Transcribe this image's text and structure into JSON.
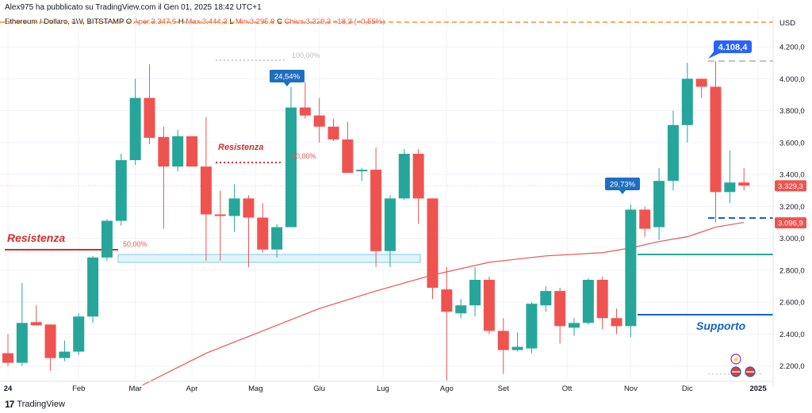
{
  "header": {
    "published": "Alex975 ha pubblicato su TradingView.com il Gen 01, 2025 18:42 UTC+1"
  },
  "legend": {
    "symbol": "Ethereum / Dollaro, 1W, BITSTAMP",
    "open_label": "O",
    "open_text": "Aper.3.347,6",
    "high_label": "H",
    "high_text": "Max.3.444,3",
    "low_label": "L",
    "low_text": "Min.3.295,9",
    "close_label": "C",
    "close_text": "Chius.3.329,3",
    "change_text": "−18,3 (−0,55%)"
  },
  "footer": {
    "brand": "TradingView",
    "logo": "17"
  },
  "colors": {
    "up": "#26a69a",
    "down": "#ef5350",
    "ma": "#ef5350",
    "resistance": "#d32f2f",
    "support": "#1565c0",
    "teal_line": "#26a69a",
    "callout": "#2962ff"
  },
  "chart_data": {
    "type": "candlestick",
    "currency": "USD",
    "ylim": [
      2050,
      4300
    ],
    "y_ticks": [
      2200,
      2400,
      2600,
      2800,
      3000,
      3200,
      3400,
      3600,
      3800,
      4000,
      4200
    ],
    "y_tick_labels": [
      "2.200,0",
      "2.400,0",
      "2.600,0",
      "2.800,0",
      "3.000,0",
      "3.200,0",
      "3.400,0",
      "3.600,0",
      "3.800,0",
      "4.000,0",
      "4.200,0"
    ],
    "x_labels": [
      "24",
      "Feb",
      "Mar",
      "Apr",
      "Mag",
      "Giu",
      "Lug",
      "Ago",
      "Set",
      "Ott",
      "Nov",
      "Dic",
      "2025"
    ],
    "x_label_weeks": [
      0,
      5,
      9,
      13,
      17.5,
      22,
      26.5,
      31,
      35,
      39.5,
      44,
      48,
      53
    ],
    "candles": [
      {
        "o": 2280,
        "h": 2400,
        "l": 2200,
        "c": 2220
      },
      {
        "o": 2220,
        "h": 2720,
        "l": 2200,
        "c": 2470
      },
      {
        "o": 2475,
        "h": 2580,
        "l": 2450,
        "c": 2455
      },
      {
        "o": 2460,
        "h": 2460,
        "l": 2170,
        "c": 2250
      },
      {
        "o": 2250,
        "h": 2360,
        "l": 2230,
        "c": 2290
      },
      {
        "o": 2290,
        "h": 2530,
        "l": 2270,
        "c": 2510
      },
      {
        "o": 2510,
        "h": 2890,
        "l": 2470,
        "c": 2880
      },
      {
        "o": 2880,
        "h": 3120,
        "l": 2860,
        "c": 3110
      },
      {
        "o": 3110,
        "h": 3530,
        "l": 3080,
        "c": 3490
      },
      {
        "o": 3490,
        "h": 4000,
        "l": 3460,
        "c": 3880
      },
      {
        "o": 3880,
        "h": 4090,
        "l": 3590,
        "c": 3630
      },
      {
        "o": 3635,
        "h": 3700,
        "l": 3060,
        "c": 3450
      },
      {
        "o": 3450,
        "h": 3680,
        "l": 3420,
        "c": 3640
      },
      {
        "o": 3640,
        "h": 3640,
        "l": 3450,
        "c": 3450
      },
      {
        "o": 3450,
        "h": 3760,
        "l": 2860,
        "c": 3150
      },
      {
        "o": 3150,
        "h": 3300,
        "l": 2860,
        "c": 3140
      },
      {
        "o": 3140,
        "h": 3340,
        "l": 3040,
        "c": 3250
      },
      {
        "o": 3250,
        "h": 3270,
        "l": 2820,
        "c": 3130
      },
      {
        "o": 3130,
        "h": 3220,
        "l": 2910,
        "c": 2930
      },
      {
        "o": 2930,
        "h": 3090,
        "l": 2880,
        "c": 3070
      },
      {
        "o": 3070,
        "h": 3950,
        "l": 3070,
        "c": 3820
      },
      {
        "o": 3820,
        "h": 3980,
        "l": 3750,
        "c": 3770
      },
      {
        "o": 3770,
        "h": 3880,
        "l": 3600,
        "c": 3700
      },
      {
        "o": 3700,
        "h": 3750,
        "l": 3610,
        "c": 3620
      },
      {
        "o": 3620,
        "h": 3730,
        "l": 3430,
        "c": 3410
      },
      {
        "o": 3420,
        "h": 3440,
        "l": 3360,
        "c": 3430
      },
      {
        "o": 3430,
        "h": 3570,
        "l": 2820,
        "c": 2920
      },
      {
        "o": 2920,
        "h": 3270,
        "l": 2820,
        "c": 3250
      },
      {
        "o": 3250,
        "h": 3560,
        "l": 3240,
        "c": 3530
      },
      {
        "o": 3530,
        "h": 3560,
        "l": 3090,
        "c": 3250
      },
      {
        "o": 3250,
        "h": 3250,
        "l": 2620,
        "c": 2690
      },
      {
        "o": 2680,
        "h": 2820,
        "l": 2110,
        "c": 2540
      },
      {
        "o": 2530,
        "h": 2620,
        "l": 2500,
        "c": 2580
      },
      {
        "o": 2580,
        "h": 2820,
        "l": 2510,
        "c": 2740
      },
      {
        "o": 2740,
        "h": 2760,
        "l": 2400,
        "c": 2420
      },
      {
        "o": 2420,
        "h": 2500,
        "l": 2150,
        "c": 2300
      },
      {
        "o": 2300,
        "h": 2410,
        "l": 2290,
        "c": 2320
      },
      {
        "o": 2310,
        "h": 2600,
        "l": 2280,
        "c": 2590
      },
      {
        "o": 2580,
        "h": 2700,
        "l": 2540,
        "c": 2670
      },
      {
        "o": 2670,
        "h": 2690,
        "l": 2340,
        "c": 2450
      },
      {
        "o": 2440,
        "h": 2500,
        "l": 2390,
        "c": 2470
      },
      {
        "o": 2470,
        "h": 2750,
        "l": 2460,
        "c": 2740
      },
      {
        "o": 2740,
        "h": 2760,
        "l": 2430,
        "c": 2500
      },
      {
        "o": 2500,
        "h": 2560,
        "l": 2400,
        "c": 2450
      },
      {
        "o": 2450,
        "h": 3210,
        "l": 2380,
        "c": 3180
      },
      {
        "o": 3180,
        "h": 3200,
        "l": 3010,
        "c": 3060
      },
      {
        "o": 3070,
        "h": 3440,
        "l": 2990,
        "c": 3360
      },
      {
        "o": 3360,
        "h": 3800,
        "l": 3300,
        "c": 3710
      },
      {
        "o": 3710,
        "h": 4100,
        "l": 3600,
        "c": 4000
      },
      {
        "o": 4000,
        "h": 4000,
        "l": 3880,
        "c": 3950
      },
      {
        "o": 3950,
        "h": 4110,
        "l": 3100,
        "c": 3290
      },
      {
        "o": 3290,
        "h": 3550,
        "l": 3220,
        "c": 3350
      },
      {
        "o": 3350,
        "h": 3440,
        "l": 3300,
        "c": 3330
      }
    ],
    "moving_average": {
      "x": [
        9.5,
        14,
        18,
        22,
        26,
        30,
        34,
        38,
        42,
        44,
        46,
        48,
        50,
        52
      ],
      "y": [
        2080,
        2280,
        2420,
        2560,
        2670,
        2770,
        2850,
        2890,
        2910,
        2940,
        2980,
        3010,
        3070,
        3100
      ]
    },
    "price_labels": {
      "last": "3.329,3",
      "last_value": 3329.3,
      "level": "3.096,9",
      "level_value": 3096.9,
      "high_callout": "4.108,4",
      "high_value": 4108.4
    },
    "annotations": {
      "resistance_left": "Resistenza",
      "resistance_mid": "Resistenza",
      "support": "Supporto",
      "fib_100": "100,00%",
      "fib_50_left": "50,00%",
      "fib_50_mid": "50,00%",
      "gain_may": "24,54%",
      "gain_nov": "29,73%"
    }
  }
}
